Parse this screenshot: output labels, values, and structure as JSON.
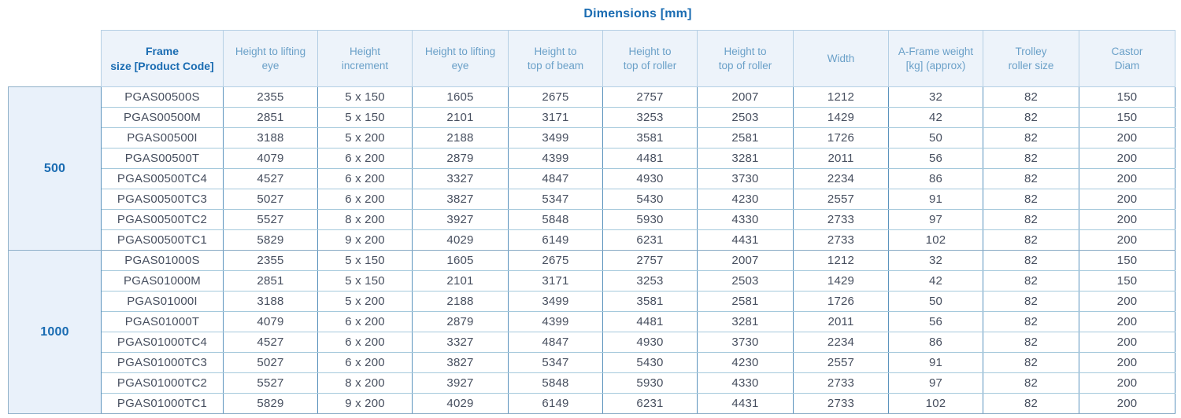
{
  "page": {
    "title": "Dimensions [mm]"
  },
  "table": {
    "columns": [
      "Frame\nsize [Product Code]",
      "Height to lifting\neye",
      "Height\nincrement",
      "Height to lifting\neye",
      "Height to\ntop of beam",
      "Height to\ntop of roller",
      "Height to\ntop of roller",
      "Width",
      "A-Frame weight\n[kg] (approx)",
      "Trolley\nroller size",
      "Castor\nDiam"
    ],
    "groups": [
      {
        "label": "500",
        "rows": [
          [
            "PGAS00500S",
            "2355",
            "5 x 150",
            "1605",
            "2675",
            "2757",
            "2007",
            "1212",
            "32",
            "82",
            "150"
          ],
          [
            "PGAS00500M",
            "2851",
            "5 x 150",
            "2101",
            "3171",
            "3253",
            "2503",
            "1429",
            "42",
            "82",
            "150"
          ],
          [
            "PGAS00500I",
            "3188",
            "5 x 200",
            "2188",
            "3499",
            "3581",
            "2581",
            "1726",
            "50",
            "82",
            "200"
          ],
          [
            "PGAS00500T",
            "4079",
            "6 x 200",
            "2879",
            "4399",
            "4481",
            "3281",
            "2011",
            "56",
            "82",
            "200"
          ],
          [
            "PGAS00500TC4",
            "4527",
            "6 x 200",
            "3327",
            "4847",
            "4930",
            "3730",
            "2234",
            "86",
            "82",
            "200"
          ],
          [
            "PGAS00500TC3",
            "5027",
            "6 x 200",
            "3827",
            "5347",
            "5430",
            "4230",
            "2557",
            "91",
            "82",
            "200"
          ],
          [
            "PGAS00500TC2",
            "5527",
            "8 x 200",
            "3927",
            "5848",
            "5930",
            "4330",
            "2733",
            "97",
            "82",
            "200"
          ],
          [
            "PGAS00500TC1",
            "5829",
            "9 x 200",
            "4029",
            "6149",
            "6231",
            "4431",
            "2733",
            "102",
            "82",
            "200"
          ]
        ]
      },
      {
        "label": "1000",
        "rows": [
          [
            "PGAS01000S",
            "2355",
            "5 x 150",
            "1605",
            "2675",
            "2757",
            "2007",
            "1212",
            "32",
            "82",
            "150"
          ],
          [
            "PGAS01000M",
            "2851",
            "5 x 150",
            "2101",
            "3171",
            "3253",
            "2503",
            "1429",
            "42",
            "82",
            "150"
          ],
          [
            "PGAS01000I",
            "3188",
            "5 x 200",
            "2188",
            "3499",
            "3581",
            "2581",
            "1726",
            "50",
            "82",
            "200"
          ],
          [
            "PGAS01000T",
            "4079",
            "6 x 200",
            "2879",
            "4399",
            "4481",
            "3281",
            "2011",
            "56",
            "82",
            "200"
          ],
          [
            "PGAS01000TC4",
            "4527",
            "6 x 200",
            "3327",
            "4847",
            "4930",
            "3730",
            "2234",
            "86",
            "82",
            "200"
          ],
          [
            "PGAS01000TC3",
            "5027",
            "6 x 200",
            "3827",
            "5347",
            "5430",
            "4230",
            "2557",
            "91",
            "82",
            "200"
          ],
          [
            "PGAS01000TC2",
            "5527",
            "8 x 200",
            "3927",
            "5848",
            "5930",
            "4330",
            "2733",
            "97",
            "82",
            "200"
          ],
          [
            "PGAS01000TC1",
            "5829",
            "9 x 200",
            "4029",
            "6149",
            "6231",
            "4431",
            "2733",
            "102",
            "82",
            "200"
          ]
        ]
      }
    ]
  },
  "colors": {
    "accent_blue": "#1a6cb2",
    "header_text": "#6aa0c8",
    "body_text": "#474f5f",
    "header_bg": "#edf3fa",
    "group_bg": "#e9f1fa",
    "vertical_border": "#5b93bd",
    "horizontal_border": "#a5c9dc"
  }
}
